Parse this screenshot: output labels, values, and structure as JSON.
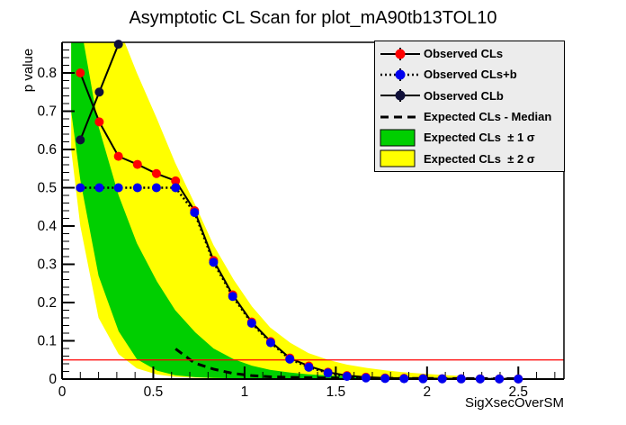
{
  "page": {
    "title": "Asymptotic CL Scan for plot_mA90tb13TOL10"
  },
  "axes": {
    "x": {
      "title": "SigXsecOverSM",
      "min": 0,
      "max": 2.75,
      "major_tick_values": [
        0,
        0.5,
        1,
        1.5,
        2,
        2.5
      ],
      "major_tick_labels": [
        "0",
        "0.5",
        "1",
        "1.5",
        "2",
        "2.5"
      ],
      "minor_tick_step": 0.1
    },
    "y": {
      "title": "p value",
      "min": 0,
      "max": 0.88,
      "major_tick_values": [
        0,
        0.1,
        0.2,
        0.3,
        0.4,
        0.5,
        0.6,
        0.7,
        0.8
      ],
      "major_tick_labels": [
        "0",
        "0.1",
        "0.2",
        "0.3",
        "0.4",
        "0.5",
        "0.6",
        "0.7",
        "0.8"
      ],
      "minor_tick_step": 0.02
    }
  },
  "reference_line": {
    "y": 0.05,
    "color": "#ff0000"
  },
  "legend": {
    "background": "#ececec",
    "entries": [
      {
        "label": "Observed CLs",
        "marker": "circle",
        "marker_color": "#ff0000",
        "line": "solid",
        "line_color": "#000000"
      },
      {
        "label": "Observed CLs+b",
        "marker": "circle",
        "marker_color": "#0000ee",
        "line": "dotted",
        "line_color": "#000000"
      },
      {
        "label": "Observed CLb",
        "marker": "circle",
        "marker_color": "#10103a",
        "line": "solid",
        "line_color": "#000000"
      },
      {
        "label": "Expected CLs - Median",
        "marker": "none",
        "marker_color": null,
        "line": "dashed",
        "line_color": "#000000"
      },
      {
        "label": "Expected CLs  ± 1 σ",
        "marker": "box",
        "marker_color": "#00cf00",
        "line": "none",
        "line_color": null
      },
      {
        "label": "Expected CLs  ± 2 σ",
        "marker": "box",
        "marker_color": "#ffff00",
        "line": "none",
        "line_color": null
      }
    ]
  },
  "chart_data": {
    "type": "line",
    "title": "Asymptotic CL Scan for plot_mA90tb13TOL10",
    "xlabel": "SigXsecOverSM",
    "ylabel": "p value",
    "xlim": [
      0,
      2.75
    ],
    "ylim": [
      0,
      0.88
    ],
    "grid": false,
    "legend_position": "top-right",
    "reference_line_y": 0.05,
    "x": [
      0.1,
      0.204,
      0.309,
      0.413,
      0.517,
      0.622,
      0.726,
      0.83,
      0.935,
      1.039,
      1.143,
      1.248,
      1.352,
      1.457,
      1.561,
      1.665,
      1.77,
      1.874,
      1.978,
      2.083,
      2.187,
      2.291,
      2.396,
      2.5
    ],
    "series": [
      {
        "name": "Observed CLs",
        "line": "solid",
        "line_color": "#000000",
        "marker": "circle",
        "marker_color": "#ff0000",
        "values": [
          0.8,
          0.672,
          0.582,
          0.561,
          0.537,
          0.518,
          0.44,
          0.31,
          0.22,
          0.149,
          0.098,
          0.055,
          0.034,
          0.018,
          0.009,
          0.005,
          0.003,
          0.002,
          0.0015,
          0.001,
          0.0008,
          0.0007,
          0.0006,
          0.0005
        ]
      },
      {
        "name": "Observed CLs+b",
        "line": "dotted",
        "line_color": "#000000",
        "marker": "circle",
        "marker_color": "#0000ee",
        "values": [
          0.5,
          0.5,
          0.5,
          0.5,
          0.5,
          0.5,
          0.435,
          0.305,
          0.216,
          0.146,
          0.095,
          0.052,
          0.031,
          0.016,
          0.007,
          0.003,
          0.0015,
          0.001,
          0.0008,
          0.0006,
          0.0005,
          0.0004,
          0.0003,
          0.0003
        ]
      },
      {
        "name": "Observed CLb",
        "line": "solid",
        "line_color": "#000000",
        "marker": "circle",
        "marker_color": "#10103a",
        "values": [
          0.625,
          0.75,
          0.875,
          1.0,
          null,
          null,
          null,
          null,
          null,
          null,
          null,
          null,
          null,
          null,
          null,
          null,
          null,
          null,
          null,
          null,
          null,
          null,
          null,
          null
        ]
      },
      {
        "name": "Expected CLs - Median",
        "line": "dashed",
        "line_color": "#000000",
        "marker": "none",
        "marker_color": null,
        "values": [
          null,
          null,
          null,
          null,
          null,
          0.079,
          0.042,
          0.026,
          0.015,
          0.009,
          0.006,
          0.0045,
          0.0036,
          0.003,
          0.0026,
          0.0023,
          0.0021,
          0.0019,
          0.0017,
          0.0016,
          0.0015,
          0.0014,
          0.0013,
          0.0012
        ]
      }
    ],
    "bands": [
      {
        "name": "Expected CLs ± 2 σ",
        "sigma": 2,
        "color": "#ffff00",
        "x": [
          0.05,
          0.1,
          0.2,
          0.31,
          0.41,
          0.52,
          0.62,
          0.73,
          0.83,
          0.94,
          1.04,
          1.14,
          1.25,
          1.35,
          1.46,
          1.56,
          1.67,
          1.77,
          1.87,
          1.98,
          2.08,
          2.19
        ],
        "upper": [
          1.0,
          1.0,
          1.0,
          0.92,
          0.8,
          0.68,
          0.565,
          0.455,
          0.35,
          0.26,
          0.19,
          0.135,
          0.095,
          0.068,
          0.05,
          0.038,
          0.029,
          0.023,
          0.018,
          0.014,
          0.011,
          0.008
        ],
        "lower": [
          0.6,
          0.4,
          0.16,
          0.065,
          0.028,
          0.012,
          0.006,
          0.0035,
          0.0025,
          0.002,
          0.0016,
          0.0013,
          0.0011,
          0.001,
          0.0009,
          0.0008,
          0.0008,
          0.0007,
          0.0007,
          0.0006,
          0.0006,
          0.0005
        ]
      },
      {
        "name": "Expected CLs ± 1 σ",
        "sigma": 1,
        "color": "#00cf00",
        "x": [
          0.05,
          0.1,
          0.2,
          0.31,
          0.41,
          0.52,
          0.62,
          0.73,
          0.83,
          0.94,
          1.04,
          1.14,
          1.25,
          1.35,
          1.46,
          1.56,
          1.67,
          1.77,
          1.87,
          1.98,
          2.08,
          2.19
        ],
        "upper": [
          1.0,
          0.93,
          0.66,
          0.48,
          0.355,
          0.255,
          0.18,
          0.122,
          0.08,
          0.052,
          0.035,
          0.024,
          0.017,
          0.0125,
          0.0095,
          0.0075,
          0.006,
          0.005,
          0.0045,
          0.004,
          0.0035,
          0.003
        ],
        "lower": [
          0.7,
          0.52,
          0.27,
          0.125,
          0.052,
          0.022,
          0.01,
          0.005,
          0.003,
          0.0022,
          0.0018,
          0.0015,
          0.0013,
          0.0012,
          0.0011,
          0.001,
          0.001,
          0.0009,
          0.0009,
          0.0008,
          0.0008,
          0.0008
        ]
      }
    ]
  }
}
